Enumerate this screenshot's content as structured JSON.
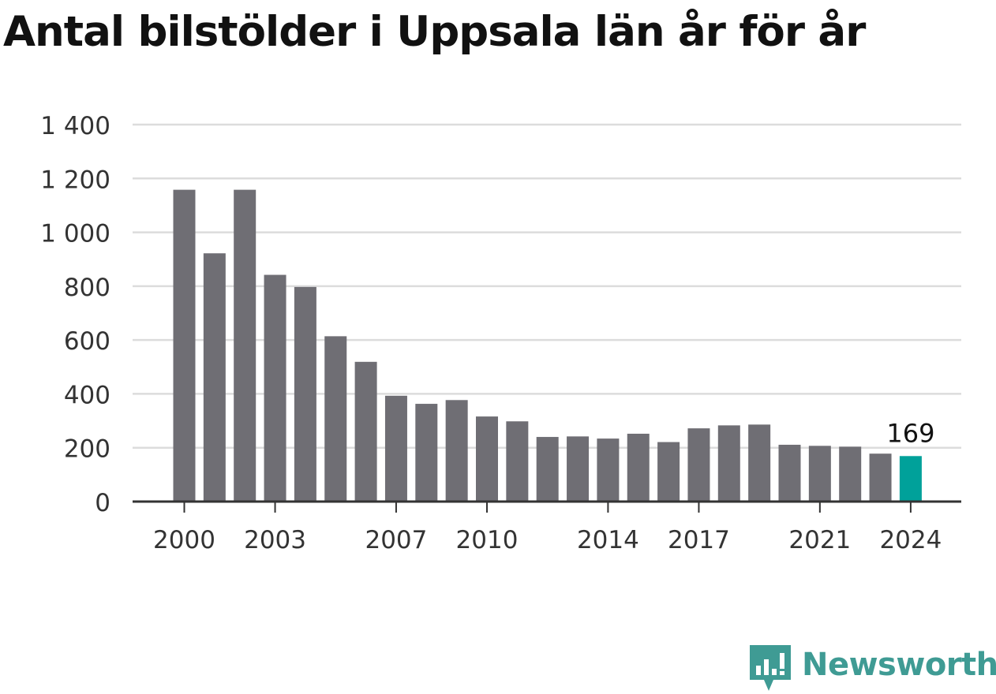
{
  "chart_data": {
    "type": "bar",
    "title": "Antal bilstölder i Uppsala län år för år",
    "xlabel": "",
    "ylabel": "",
    "categories": [
      2000,
      2001,
      2002,
      2003,
      2004,
      2005,
      2006,
      2007,
      2008,
      2009,
      2010,
      2011,
      2012,
      2013,
      2014,
      2015,
      2016,
      2017,
      2018,
      2019,
      2020,
      2021,
      2022,
      2023,
      2024
    ],
    "values": [
      1158,
      922,
      1158,
      842,
      797,
      614,
      519,
      393,
      363,
      377,
      316,
      298,
      240,
      242,
      234,
      252,
      221,
      272,
      283,
      286,
      211,
      207,
      204,
      178,
      169
    ],
    "x_tick_labels": [
      "2000",
      "2003",
      "2007",
      "2010",
      "2014",
      "2017",
      "2021",
      "2024"
    ],
    "y_tick_labels": [
      "0",
      "200",
      "400",
      "600",
      "800",
      "1 000",
      "1 200",
      "1 400"
    ],
    "y_ticks": [
      0,
      200,
      400,
      600,
      800,
      1000,
      1200,
      1400
    ],
    "ylim": [
      0,
      1400
    ],
    "grid": true,
    "highlight": {
      "category": 2024,
      "label": "169",
      "color": "#00a19a"
    },
    "bar_color": "#6f6e74"
  },
  "brand": {
    "name": "Newsworthy",
    "icon": "newsworthy-logo-icon",
    "color": "#3f9b94"
  }
}
